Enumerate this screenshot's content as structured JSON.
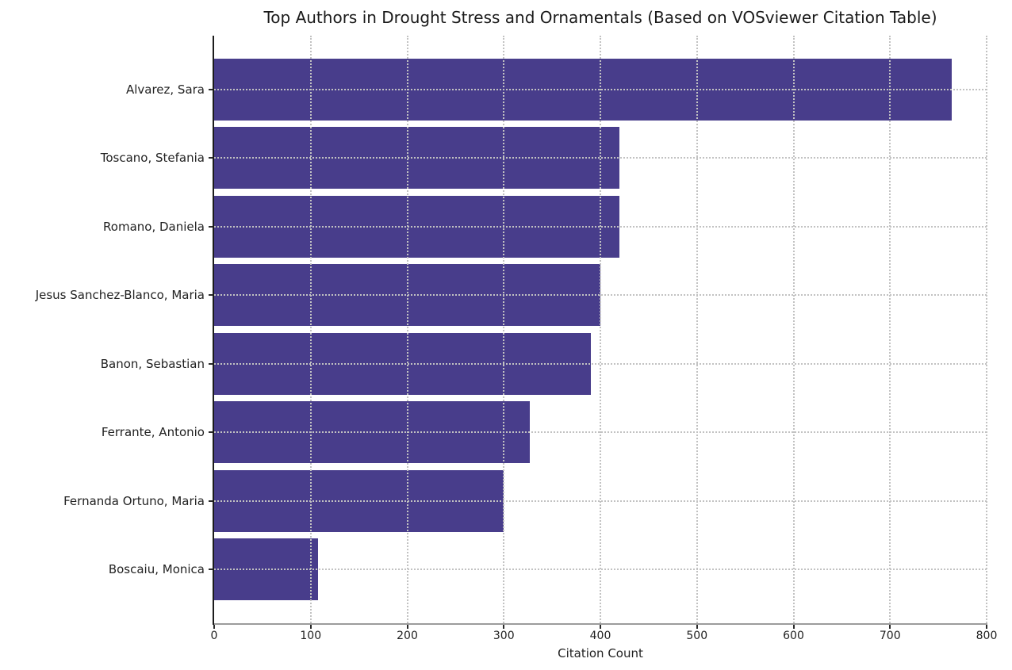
{
  "chart_data": {
    "type": "bar",
    "orientation": "horizontal",
    "title": "Top Authors in Drought Stress and Ornamentals (Based on VOSviewer Citation Table)",
    "xlabel": "Citation Count",
    "ylabel": "",
    "categories": [
      "Alvarez, Sara",
      "Toscano, Stefania",
      "Romano, Daniela",
      "Jesus Sanchez-Blanco, Maria",
      "Banon, Sebastian",
      "Ferrante, Antonio",
      "Fernanda Ortuno, Maria",
      "Boscaiu, Monica"
    ],
    "values": [
      764,
      420,
      420,
      400,
      390,
      327,
      300,
      108
    ],
    "xlim": [
      0,
      800
    ],
    "xticks": [
      0,
      100,
      200,
      300,
      400,
      500,
      600,
      700,
      800
    ],
    "grid": "both-axes, dotted, drawn above bars",
    "legend": "none",
    "bar_color": "#483d8b",
    "grid_color": "#c2c2c2",
    "axis_color": "#1c1c1c",
    "background_color": "#ffffff"
  }
}
